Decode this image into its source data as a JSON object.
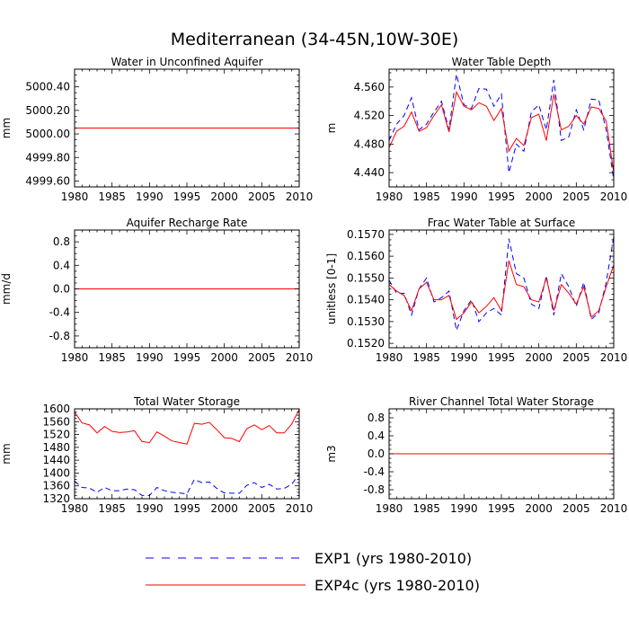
{
  "figure": {
    "title": "Mediterranean (34-45N,10W-30E)"
  },
  "colors": {
    "exp1": "#0000ff",
    "exp4c": "#ff0000",
    "axes": "#000000"
  },
  "legend": {
    "entries": [
      {
        "name": "EXP1 (yrs 1980-2010)",
        "color": "#0000ff",
        "style": "dashed"
      },
      {
        "name": "EXP4c (yrs 1980-2010)",
        "color": "#ff0000",
        "style": "solid"
      }
    ]
  },
  "chart_data": [
    {
      "type": "line",
      "title": "Water in Unconfined Aquifer",
      "xlabel": "",
      "ylabel": "mm",
      "xlim": [
        1980,
        2010
      ],
      "ylim": [
        4999.55,
        5000.55
      ],
      "xticks": [
        1980,
        1985,
        1990,
        1995,
        2000,
        2005,
        2010
      ],
      "yticks": [
        4999.6,
        4999.8,
        5000.0,
        5000.2,
        5000.4
      ],
      "yticklabels": [
        "4999.60",
        "4999.80",
        "5000.00",
        "5000.20",
        "5000.40"
      ],
      "x": [
        1980,
        2010
      ],
      "series": [
        {
          "name": "EXP1 (yrs 1980-2010)",
          "values": [
            5000.05,
            5000.05
          ]
        },
        {
          "name": "EXP4c (yrs 1980-2010)",
          "values": [
            5000.05,
            5000.05
          ]
        }
      ]
    },
    {
      "type": "line",
      "title": "Water Table Depth",
      "xlabel": "",
      "ylabel": "m",
      "xlim": [
        1980,
        2010
      ],
      "ylim": [
        4.42,
        4.585
      ],
      "xticks": [
        1980,
        1985,
        1990,
        1995,
        2000,
        2005,
        2010
      ],
      "yticks": [
        4.44,
        4.48,
        4.52,
        4.56
      ],
      "yticklabels": [
        "4.440",
        "4.480",
        "4.520",
        "4.560"
      ],
      "x": [
        1980,
        1981,
        1982,
        1983,
        1984,
        1985,
        1986,
        1987,
        1988,
        1989,
        1990,
        1991,
        1992,
        1993,
        1994,
        1995,
        1996,
        1997,
        1998,
        1999,
        2000,
        2001,
        2002,
        2003,
        2004,
        2005,
        2006,
        2007,
        2008,
        2009,
        2010
      ],
      "series": [
        {
          "name": "EXP1 (yrs 1980-2010)",
          "values": [
            4.485,
            4.508,
            4.52,
            4.545,
            4.5,
            4.508,
            4.525,
            4.54,
            4.5,
            4.578,
            4.535,
            4.53,
            4.558,
            4.557,
            4.533,
            4.55,
            4.44,
            4.48,
            4.47,
            4.525,
            4.535,
            4.5,
            4.57,
            4.485,
            4.49,
            4.528,
            4.5,
            4.543,
            4.542,
            4.5,
            4.43
          ]
        },
        {
          "name": "EXP4c (yrs 1980-2010)",
          "values": [
            4.475,
            4.498,
            4.505,
            4.525,
            4.498,
            4.503,
            4.52,
            4.535,
            4.497,
            4.553,
            4.533,
            4.528,
            4.538,
            4.533,
            4.513,
            4.53,
            4.47,
            4.488,
            4.478,
            4.517,
            4.522,
            4.485,
            4.55,
            4.5,
            4.505,
            4.52,
            4.508,
            4.532,
            4.53,
            4.512,
            4.44
          ]
        }
      ]
    },
    {
      "type": "line",
      "title": "Aquifer Recharge Rate",
      "xlabel": "",
      "ylabel": "mm/d",
      "xlim": [
        1980,
        2010
      ],
      "ylim": [
        -1.0,
        1.0
      ],
      "xticks": [
        1980,
        1985,
        1990,
        1995,
        2000,
        2005,
        2010
      ],
      "yticks": [
        -0.8,
        -0.4,
        0.0,
        0.4,
        0.8
      ],
      "yticklabels": [
        "-0.8",
        "-0.4",
        "0.0",
        "0.4",
        "0.8"
      ],
      "x": [
        1980,
        2010
      ],
      "series": [
        {
          "name": "EXP1 (yrs 1980-2010)",
          "values": [
            0.0,
            0.0
          ]
        },
        {
          "name": "EXP4c (yrs 1980-2010)",
          "values": [
            0.0,
            0.0
          ]
        }
      ]
    },
    {
      "type": "line",
      "title": "Frac Water Table at Surface",
      "xlabel": "",
      "ylabel": "unitless [0-1]",
      "xlim": [
        1980,
        2010
      ],
      "ylim": [
        0.1518,
        0.1572
      ],
      "xticks": [
        1980,
        1985,
        1990,
        1995,
        2000,
        2005,
        2010
      ],
      "yticks": [
        0.152,
        0.153,
        0.154,
        0.155,
        0.156,
        0.157
      ],
      "yticklabels": [
        "0.1520",
        "0.1530",
        "0.1540",
        "0.1550",
        "0.1560",
        "0.1570"
      ],
      "x": [
        1980,
        1981,
        1982,
        1983,
        1984,
        1985,
        1986,
        1987,
        1988,
        1989,
        1990,
        1991,
        1992,
        1993,
        1994,
        1995,
        1996,
        1997,
        1998,
        1999,
        2000,
        2001,
        2002,
        2003,
        2004,
        2005,
        2006,
        2007,
        2008,
        2009,
        2010
      ],
      "series": [
        {
          "name": "EXP1 (yrs 1980-2010)",
          "values": [
            0.1549,
            0.1543,
            0.1543,
            0.1533,
            0.1545,
            0.155,
            0.1539,
            0.1541,
            0.1544,
            0.1526,
            0.1535,
            0.154,
            0.153,
            0.1534,
            0.1536,
            0.1533,
            0.1568,
            0.1552,
            0.155,
            0.1538,
            0.1536,
            0.1551,
            0.1533,
            0.1552,
            0.1546,
            0.1537,
            0.1548,
            0.1531,
            0.1534,
            0.1548,
            0.1569
          ]
        },
        {
          "name": "EXP4c (yrs 1980-2010)",
          "values": [
            0.1547,
            0.1544,
            0.1542,
            0.1535,
            0.1545,
            0.1548,
            0.154,
            0.154,
            0.1542,
            0.1531,
            0.1534,
            0.1539,
            0.1534,
            0.1537,
            0.1541,
            0.1535,
            0.1558,
            0.1547,
            0.1546,
            0.154,
            0.1539,
            0.155,
            0.1535,
            0.1547,
            0.1543,
            0.1538,
            0.1546,
            0.1532,
            0.1535,
            0.1546,
            0.1556
          ]
        }
      ]
    },
    {
      "type": "line",
      "title": "Total Water Storage",
      "xlabel": "",
      "ylabel": "mm",
      "xlim": [
        1980,
        2010
      ],
      "ylim": [
        1320,
        1600
      ],
      "xticks": [
        1980,
        1985,
        1990,
        1995,
        2000,
        2005,
        2010
      ],
      "yticks": [
        1320,
        1360,
        1400,
        1440,
        1480,
        1520,
        1560,
        1600
      ],
      "yticklabels": [
        "1320",
        "1360",
        "1400",
        "1440",
        "1480",
        "1520",
        "1560",
        "1600"
      ],
      "x": [
        1980,
        1981,
        1982,
        1983,
        1984,
        1985,
        1986,
        1987,
        1988,
        1989,
        1990,
        1991,
        1992,
        1993,
        1994,
        1995,
        1996,
        1997,
        1998,
        1999,
        2000,
        2001,
        2002,
        2003,
        2004,
        2005,
        2006,
        2007,
        2008,
        2009,
        2010
      ],
      "series": [
        {
          "name": "EXP1 (yrs 1980-2010)",
          "values": [
            1375,
            1355,
            1353,
            1340,
            1355,
            1345,
            1345,
            1350,
            1348,
            1330,
            1330,
            1355,
            1345,
            1340,
            1338,
            1335,
            1380,
            1370,
            1372,
            1352,
            1338,
            1337,
            1337,
            1362,
            1370,
            1355,
            1365,
            1350,
            1352,
            1365,
            1398
          ]
        },
        {
          "name": "EXP4c (yrs 1980-2010)",
          "values": [
            1590,
            1556,
            1550,
            1525,
            1545,
            1530,
            1526,
            1528,
            1532,
            1498,
            1495,
            1528,
            1515,
            1500,
            1495,
            1490,
            1555,
            1552,
            1558,
            1535,
            1510,
            1508,
            1498,
            1538,
            1550,
            1535,
            1548,
            1525,
            1525,
            1553,
            1598
          ]
        }
      ]
    },
    {
      "type": "line",
      "title": "River Channel Total Water Storage",
      "xlabel": "",
      "ylabel": "m3",
      "xlim": [
        1980,
        2010
      ],
      "ylim": [
        -1.0,
        1.0
      ],
      "xticks": [
        1980,
        1985,
        1990,
        1995,
        2000,
        2005,
        2010
      ],
      "yticks": [
        -0.8,
        -0.4,
        0.0,
        0.4,
        0.8
      ],
      "yticklabels": [
        "-0.8",
        "-0.4",
        "0.0",
        "0.4",
        "0.8"
      ],
      "x": [
        1980,
        2010
      ],
      "series": [
        {
          "name": "EXP1 (yrs 1980-2010)",
          "values": [
            0.0,
            0.0
          ]
        },
        {
          "name": "EXP4c (yrs 1980-2010)",
          "values": [
            0.0,
            0.0
          ]
        }
      ]
    }
  ]
}
